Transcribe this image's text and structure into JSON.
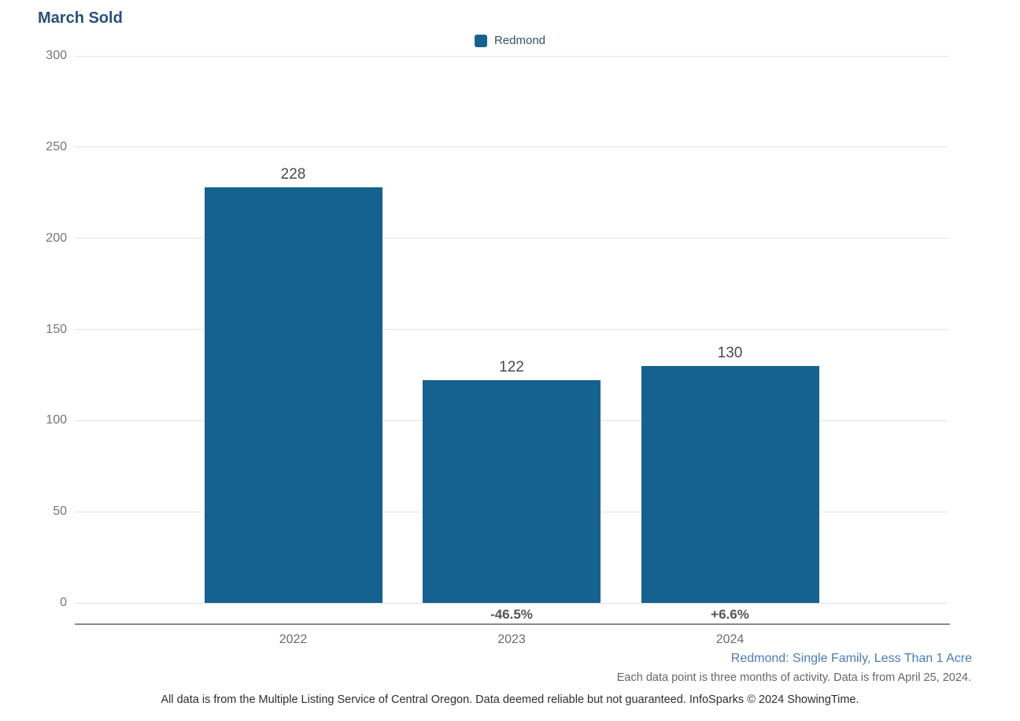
{
  "title": "March Sold",
  "legend": {
    "label": "Redmond",
    "swatch_color": "#15618f"
  },
  "chart_data": {
    "type": "bar",
    "title": "March Sold",
    "categories": [
      "2022",
      "2023",
      "2024"
    ],
    "series": [
      {
        "name": "Redmond",
        "values": [
          228,
          122,
          130
        ]
      }
    ],
    "values": [
      228,
      122,
      130
    ],
    "bar_value_labels": [
      "228",
      "122",
      "130"
    ],
    "change_labels": [
      "",
      "-46.5%",
      "+6.6%"
    ],
    "xlabel": "",
    "ylabel": "",
    "ylim": [
      0,
      300
    ],
    "yticks": [
      0,
      50,
      100,
      150,
      200,
      250,
      300
    ],
    "grid": true,
    "legend_position": "top-center",
    "bar_color": "#15618f"
  },
  "footer": {
    "segment_label": "Redmond: Single Family, Less Than 1 Acre",
    "data_note": "Each data point is three months of activity. Data is from April 25, 2024.",
    "disclaimer": "All data is from the Multiple Listing Service of Central Oregon. Data deemed reliable but not guaranteed. InfoSparks © 2024 ShowingTime."
  },
  "colors": {
    "title": "#26507d",
    "bar": "#15618f",
    "gridline": "#e3e3e3",
    "axis_line": "#8a8a8a",
    "ytick_text": "#757575",
    "xlabel_text": "#6b6b6b",
    "bar_value_text": "#4a4a4a",
    "change_text": "#555555",
    "segment_link": "#4a7db8",
    "note_text": "#666666",
    "disclaimer_text": "#2e2e2e"
  }
}
